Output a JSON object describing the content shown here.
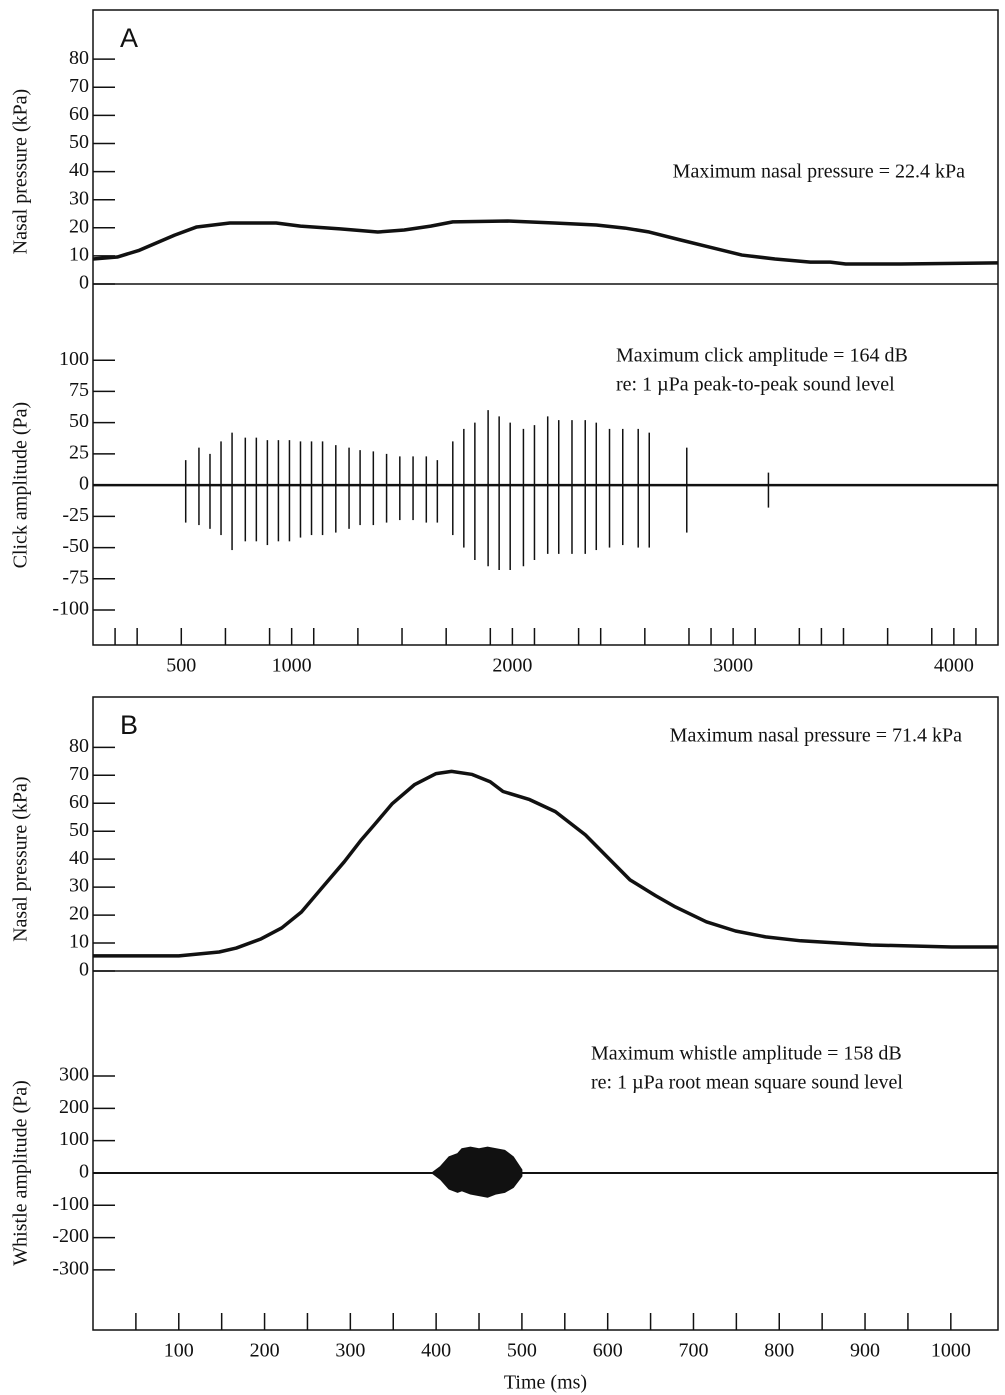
{
  "chart_data": [
    {
      "type": "line",
      "panel_label": "A",
      "ylabel": "Nasal pressure (kPa)",
      "annotations": [
        "Maximum nasal pressure = 22.4 kPa"
      ],
      "xlim": [
        100,
        4200
      ],
      "ylim": [
        0,
        97.5
      ],
      "yticks": [
        0,
        10,
        20,
        30,
        40,
        50,
        60,
        70,
        80
      ],
      "color": "#111111",
      "x": [
        100,
        210,
        310,
        470,
        570,
        720,
        930,
        1040,
        1220,
        1390,
        1510,
        1630,
        1730,
        1980,
        2190,
        2380,
        2510,
        2620,
        2760,
        2890,
        3040,
        3190,
        3350,
        3440,
        3510,
        3760,
        4200
      ],
      "values": [
        8.9,
        9.6,
        12,
        17.4,
        20.3,
        21.7,
        21.7,
        20.6,
        19.6,
        18.5,
        19.2,
        20.6,
        22.1,
        22.4,
        21.7,
        21,
        19.9,
        18.5,
        15.7,
        13.2,
        10.3,
        8.9,
        7.8,
        7.8,
        7.1,
        7.1,
        7.5
      ]
    },
    {
      "type": "spike",
      "ylabel": "Click amplitude (Pa)",
      "annotations": [
        "Maximum click amplitude = 164 dB",
        "re: 1 µPa peak-to-peak sound level"
      ],
      "xlim": [
        100,
        4200
      ],
      "ylim": [
        -128,
        161
      ],
      "yticks": [
        100,
        75,
        50,
        25,
        0,
        -25,
        -50,
        -75,
        -100
      ],
      "xticks": [
        500,
        1000,
        2000,
        3000,
        4000
      ],
      "xminorticks": [
        200,
        300,
        700,
        900,
        1100,
        1300,
        1500,
        1700,
        1900,
        2100,
        2300,
        2400,
        2600,
        2800,
        2900,
        3100,
        3300,
        3400,
        3500,
        3700,
        3900,
        4100
      ],
      "color": "#111111",
      "x": [
        520,
        580,
        630,
        680,
        730,
        790,
        840,
        890,
        940,
        990,
        1040,
        1090,
        1140,
        1200,
        1260,
        1310,
        1370,
        1430,
        1490,
        1550,
        1610,
        1660,
        1730,
        1780,
        1830,
        1890,
        1940,
        1990,
        2050,
        2100,
        2160,
        2210,
        2270,
        2330,
        2380,
        2440,
        2500,
        2570,
        2620,
        2790,
        3160
      ],
      "high": [
        20,
        30,
        25,
        35,
        42,
        38,
        38,
        36,
        36,
        36,
        35,
        35,
        35,
        32,
        30,
        28,
        27,
        25,
        23,
        23,
        23,
        20,
        35,
        45,
        50,
        60,
        55,
        50,
        45,
        48,
        55,
        52,
        52,
        52,
        50,
        45,
        45,
        45,
        42,
        30,
        10
      ],
      "low": [
        -30,
        -32,
        -35,
        -40,
        -52,
        -45,
        -45,
        -48,
        -45,
        -45,
        -42,
        -40,
        -40,
        -38,
        -35,
        -32,
        -32,
        -30,
        -28,
        -28,
        -30,
        -30,
        -40,
        -50,
        -60,
        -65,
        -68,
        -68,
        -65,
        -60,
        -55,
        -55,
        -55,
        -55,
        -52,
        -50,
        -48,
        -50,
        -50,
        -38,
        -18
      ]
    },
    {
      "type": "line",
      "panel_label": "B",
      "ylabel": "Nasal pressure (kPa)",
      "annotations": [
        "Maximum nasal pressure = 71.4 kPa"
      ],
      "xlim": [
        0,
        1055
      ],
      "ylim": [
        0,
        98
      ],
      "yticks": [
        0,
        10,
        20,
        30,
        40,
        50,
        60,
        70,
        80
      ],
      "color": "#111111",
      "x": [
        0,
        100,
        147,
        167,
        196,
        220,
        243,
        266,
        293,
        313,
        328,
        349,
        375,
        400,
        418,
        442,
        463,
        478,
        509,
        539,
        574,
        626,
        656,
        679,
        715,
        749,
        784,
        825,
        907,
        1001,
        1055
      ],
      "values": [
        5.4,
        5.4,
        6.8,
        8.2,
        11.5,
        15.4,
        21.1,
        29.4,
        39.1,
        47,
        52.3,
        59.9,
        66.7,
        70.6,
        71.4,
        70.3,
        67.7,
        64.2,
        61.3,
        57,
        48.7,
        32.6,
        26.9,
        22.9,
        17.6,
        14.3,
        12.2,
        10.8,
        9.3,
        8.6,
        8.6
      ]
    },
    {
      "type": "envelope",
      "ylabel": "Whistle amplitude (Pa)",
      "xlabel": "Time (ms)",
      "annotations": [
        "Maximum whistle amplitude = 158 dB",
        "re: 1 µPa root mean square sound level"
      ],
      "xlim": [
        0,
        1055
      ],
      "ylim": [
        -486,
        625
      ],
      "yticks": [
        300,
        200,
        100,
        0,
        -100,
        -200,
        -300
      ],
      "xticks": [
        100,
        200,
        300,
        400,
        500,
        600,
        700,
        800,
        900,
        1000
      ],
      "xminorticks": [
        50,
        150,
        250,
        350,
        450,
        550,
        650,
        750,
        850,
        950
      ],
      "color": "#111111",
      "x": [
        395,
        405,
        415,
        425,
        430,
        440,
        450,
        460,
        470,
        480,
        490,
        500
      ],
      "upper": [
        0,
        20,
        50,
        60,
        75,
        80,
        75,
        80,
        75,
        70,
        50,
        10
      ],
      "lower": [
        0,
        -20,
        -50,
        -60,
        -55,
        -65,
        -70,
        -75,
        -65,
        -60,
        -45,
        -10
      ]
    }
  ]
}
